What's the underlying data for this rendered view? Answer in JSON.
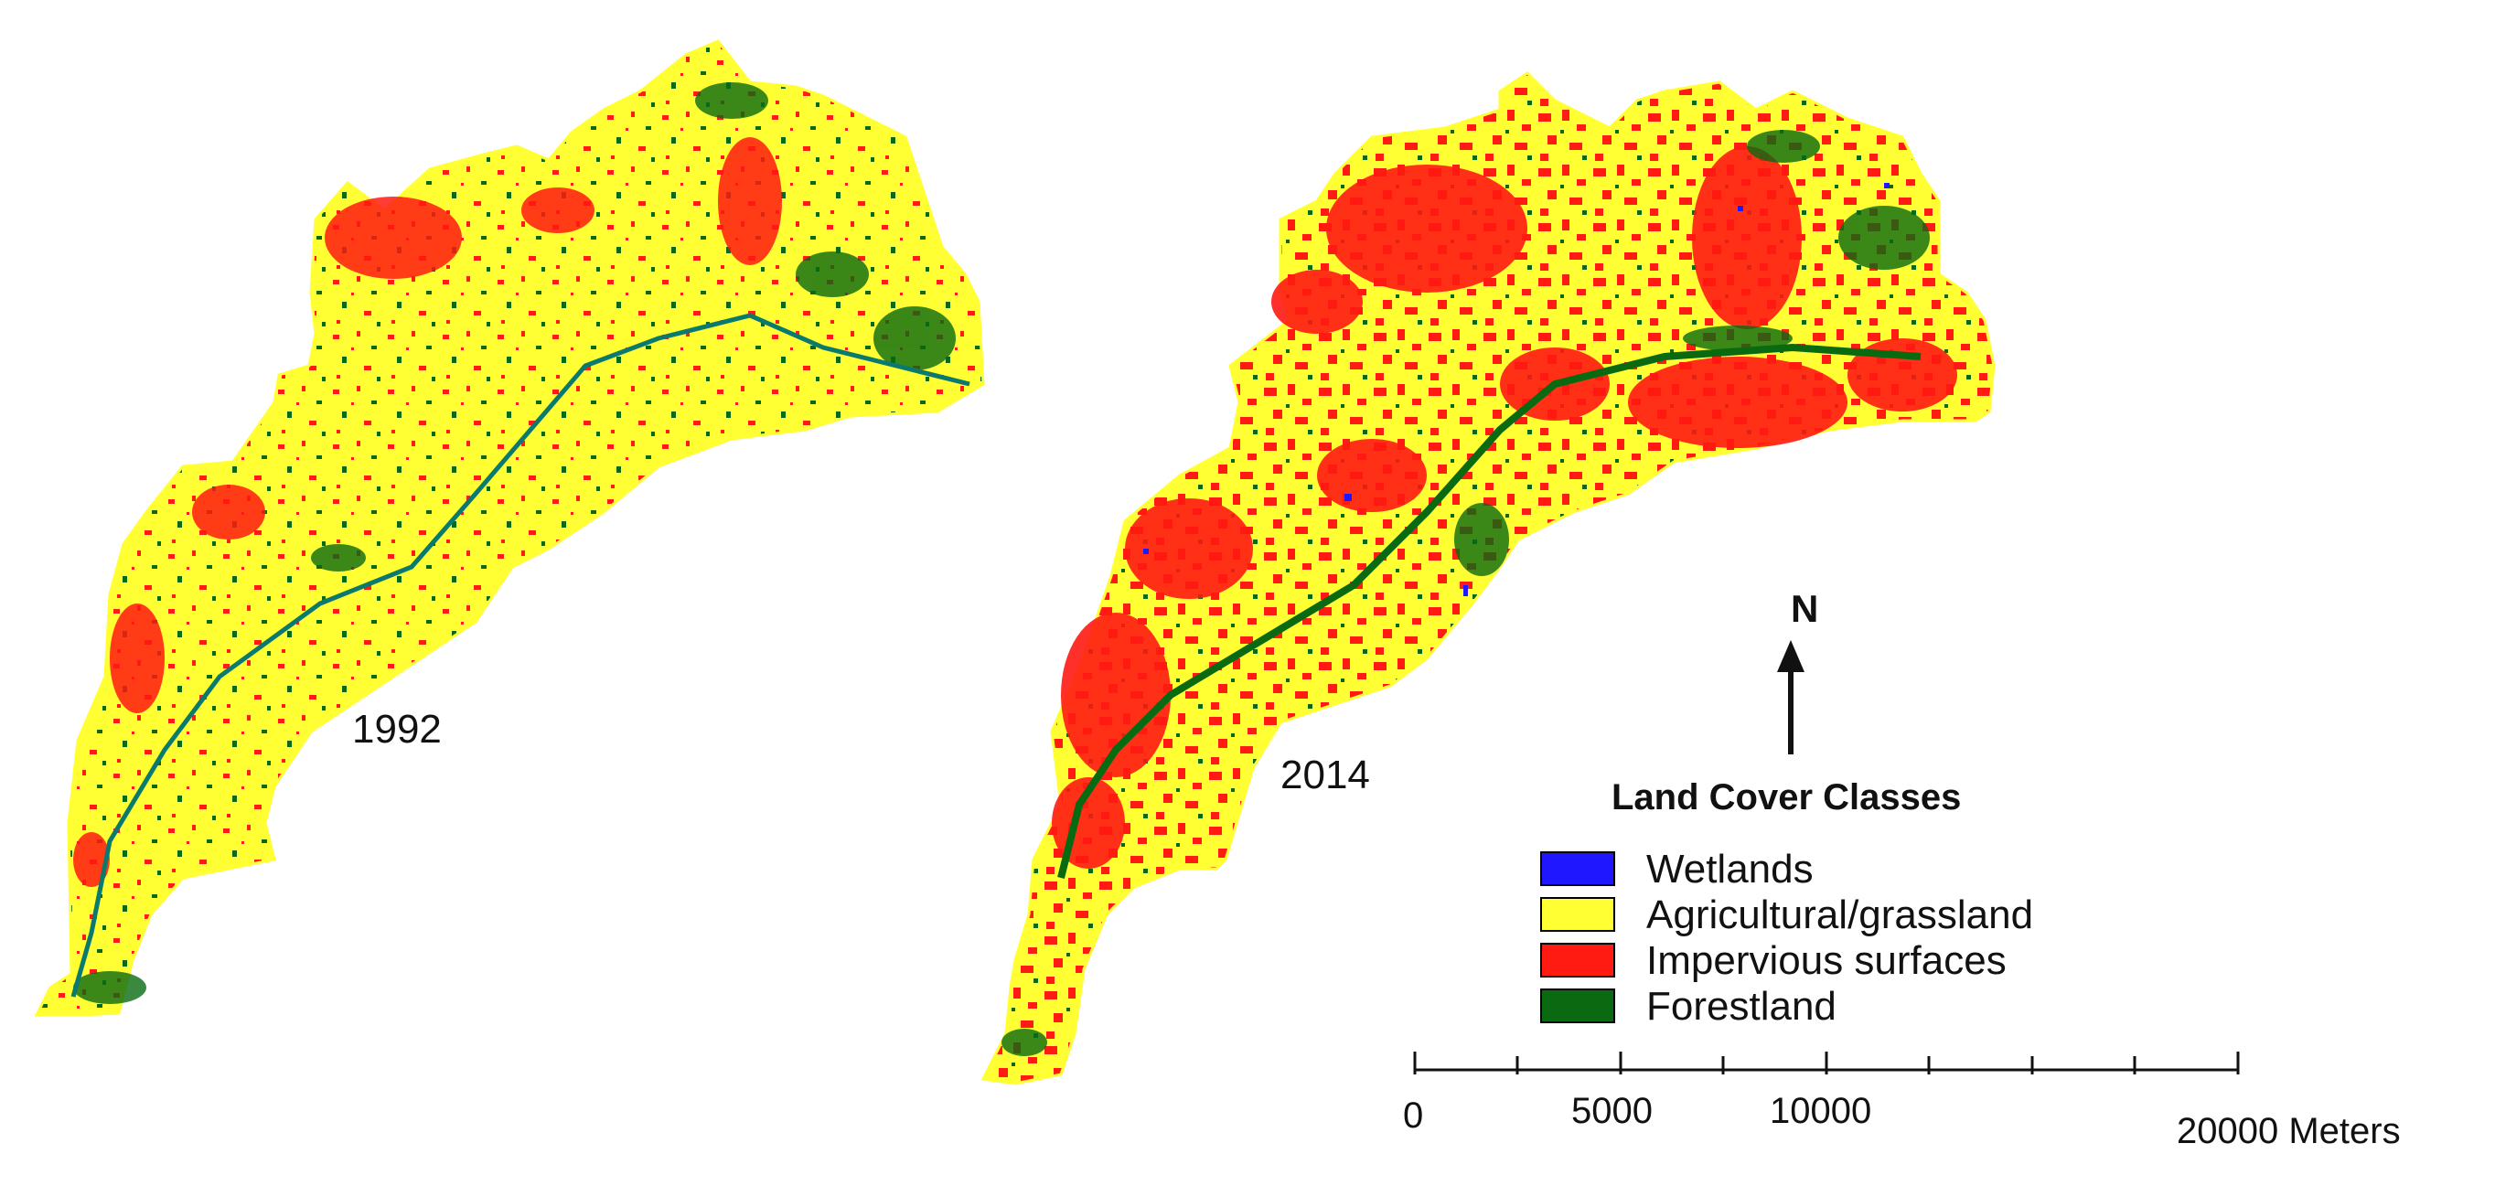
{
  "maps": [
    {
      "year_label": "1992"
    },
    {
      "year_label": "2014"
    }
  ],
  "north_arrow": {
    "letter": "N"
  },
  "legend": {
    "title": "Land Cover Classes",
    "items": [
      {
        "label": "Wetlands",
        "color": "#1e17ff"
      },
      {
        "label": "Agricultural/grassland",
        "color": "#ffff33"
      },
      {
        "label": "Impervious surfaces",
        "color": "#ff1a12"
      },
      {
        "label": "Forestland",
        "color": "#0a6a12"
      }
    ]
  },
  "scale_bar": {
    "labels": [
      "0",
      "5000",
      "10000",
      "20000 Meters"
    ]
  }
}
